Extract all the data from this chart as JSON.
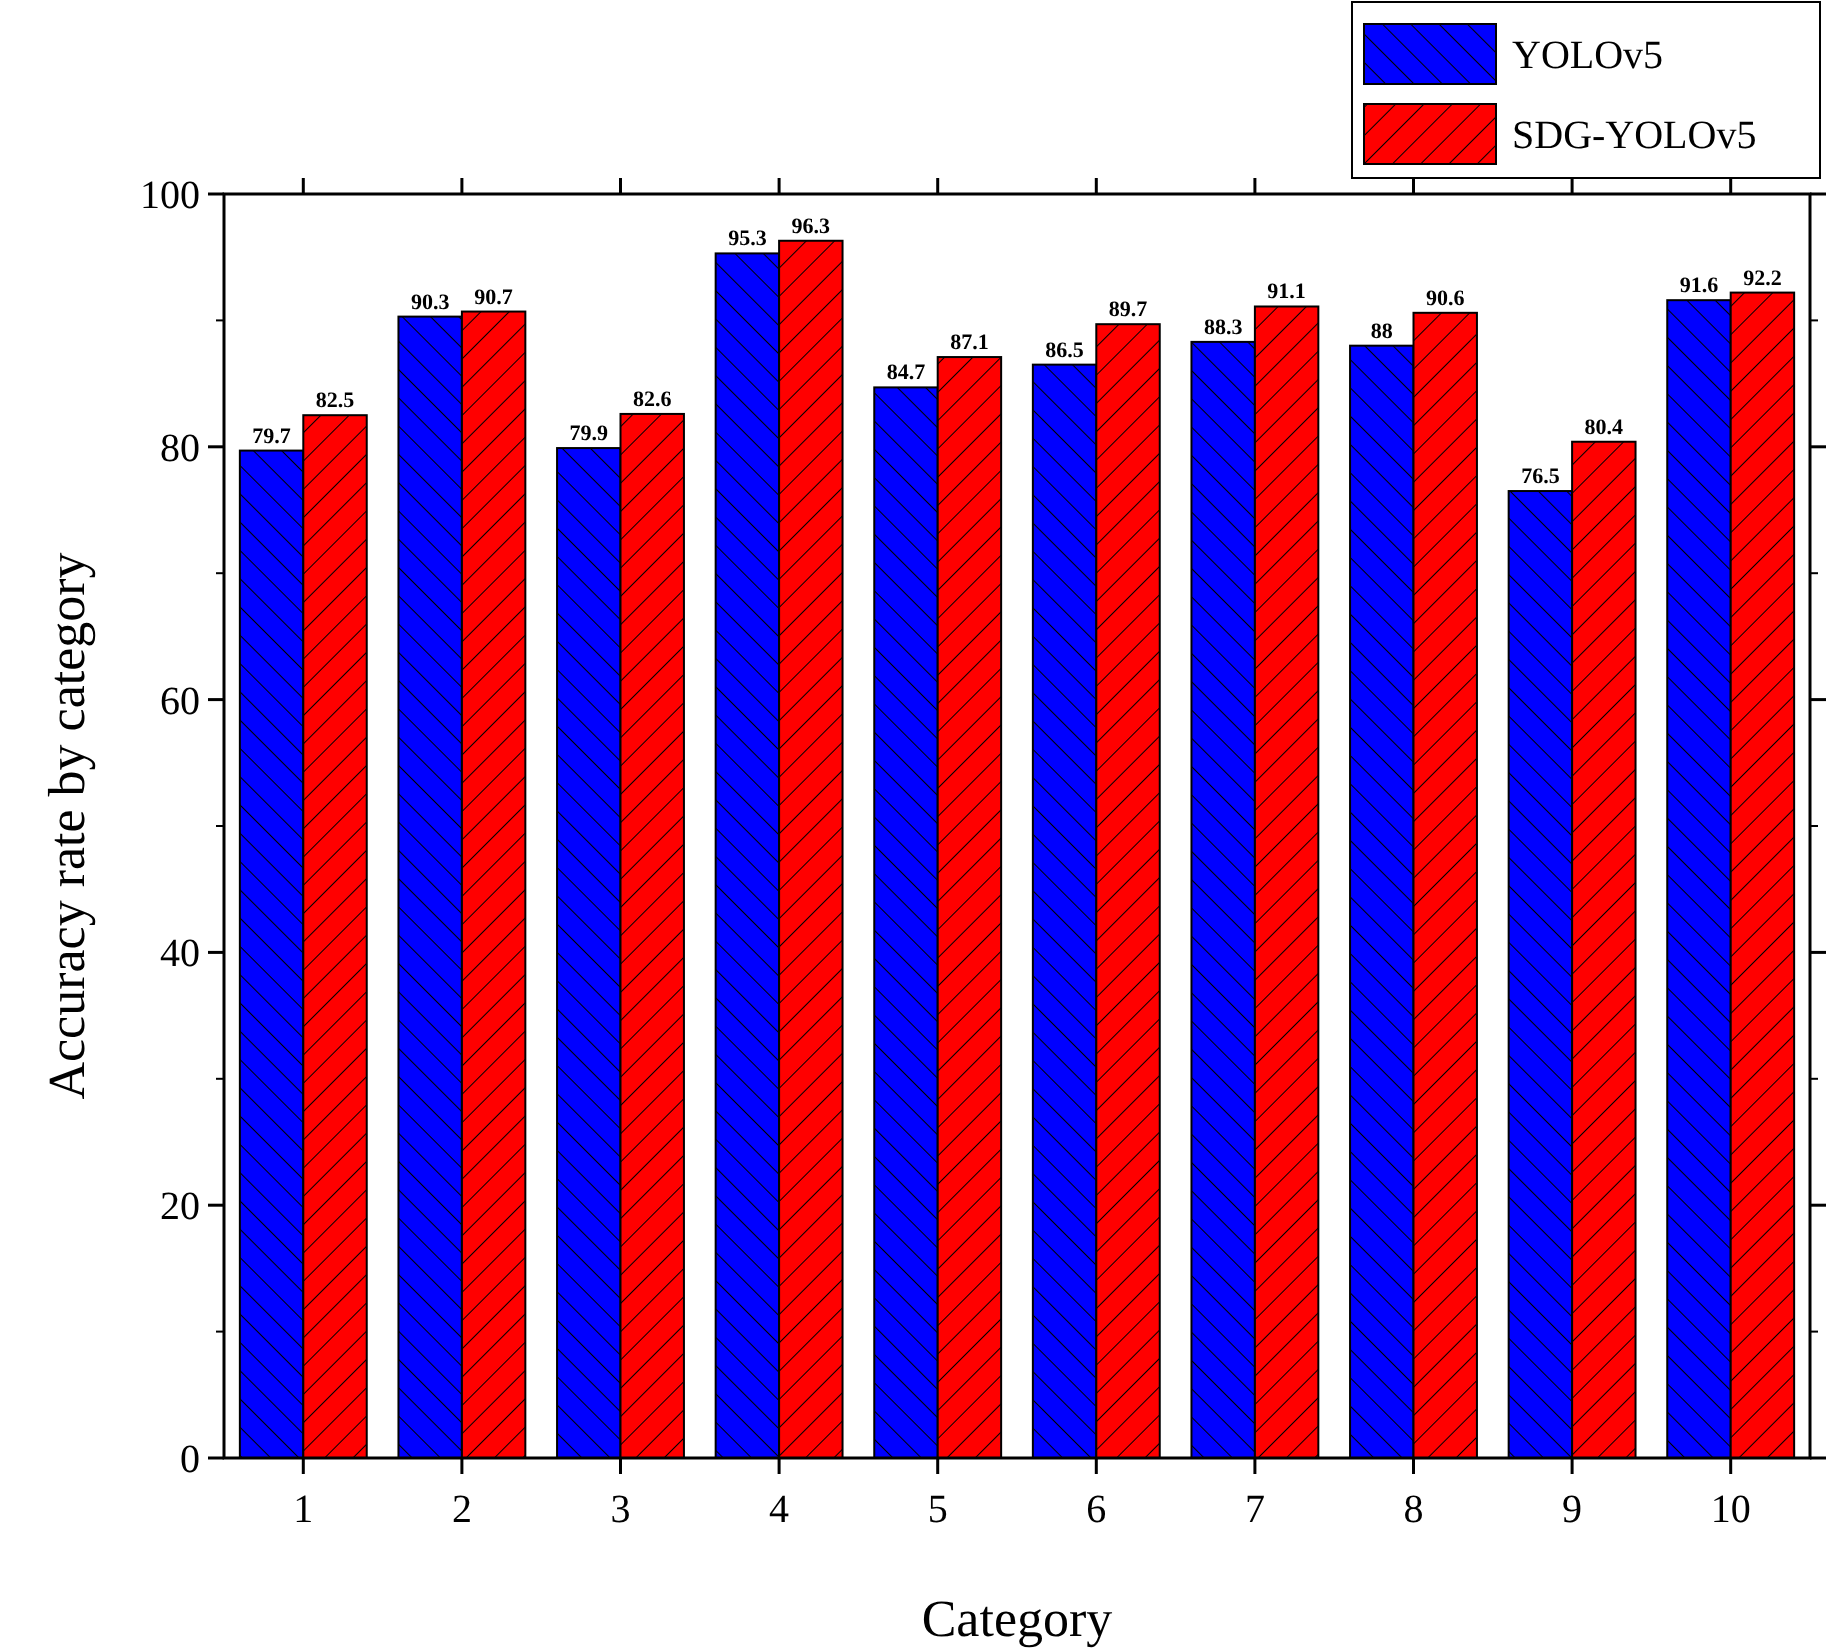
{
  "chart_data": {
    "type": "bar",
    "xlabel": "Category",
    "ylabel": "Accuracy rate by category",
    "categories": [
      "1",
      "2",
      "3",
      "4",
      "5",
      "6",
      "7",
      "8",
      "9",
      "10"
    ],
    "series": [
      {
        "name": "YOLOv5",
        "color": "#0000ff",
        "values": [
          79.7,
          90.3,
          79.9,
          95.3,
          84.7,
          86.5,
          88.3,
          88,
          76.5,
          91.6
        ]
      },
      {
        "name": "SDG-YOLOv5",
        "color": "#ff0000",
        "values": [
          82.5,
          90.7,
          82.6,
          96.3,
          87.1,
          89.7,
          91.1,
          90.6,
          80.4,
          92.2
        ]
      }
    ],
    "ylim": [
      0,
      100
    ],
    "yticks": [
      0,
      20,
      40,
      60,
      80,
      100
    ],
    "grid": false,
    "legend": "top right",
    "data_labels": true
  }
}
